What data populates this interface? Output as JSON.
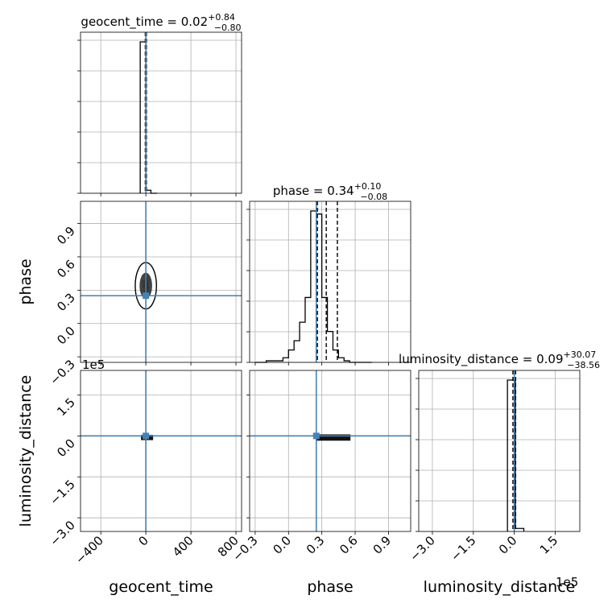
{
  "chart_data": {
    "type": "corner",
    "parameters": [
      "geocent_time",
      "phase",
      "luminosity_distance"
    ],
    "colors": {
      "truth": "#4682b4",
      "hist": "#000000",
      "grid": "#b0b0b0",
      "scatter": "#888888"
    },
    "titles": {
      "geocent_time": {
        "name": "geocent_time",
        "median": "0.02",
        "plus": "+0.84",
        "minus": "−0.80"
      },
      "phase": {
        "name": "phase",
        "median": "0.34",
        "plus": "+0.10",
        "minus": "−0.08"
      },
      "luminosity_distance": {
        "name": "luminosity_distance",
        "median": "0.09",
        "plus": "+30.07",
        "minus": "−38.56"
      }
    },
    "axes": {
      "geocent_time": {
        "label": "geocent_time",
        "lim": [
          -580,
          850
        ],
        "ticks": [
          -400,
          0,
          400,
          800
        ],
        "tick_labels": [
          "−400",
          "0",
          "400",
          "800"
        ]
      },
      "phase": {
        "label": "phase",
        "lim": [
          -0.35,
          1.1
        ],
        "ticks": [
          -0.3,
          0.0,
          0.3,
          0.6,
          0.9
        ],
        "tick_labels": [
          "−0.3",
          "0.0",
          "0.3",
          "0.6",
          "0.9"
        ]
      },
      "luminosity_distance": {
        "label": "luminosity_distance",
        "lim": [
          -3.5,
          2.4
        ],
        "ticks": [
          -3.0,
          -1.5,
          0.0,
          1.5
        ],
        "tick_labels": [
          "−3.0",
          "−1.5",
          "0.0",
          "1.5"
        ],
        "ylim": [
          -3.5,
          2.4
        ],
        "yticks": [
          -3.0,
          -1.5,
          0.0,
          1.5
        ],
        "ytick_labels": [
          "−3.0",
          "−1.5",
          "0.0",
          "1.5"
        ],
        "offset_label": "1e5"
      }
    },
    "truths": {
      "geocent_time": 0,
      "phase": 0.25,
      "luminosity_distance": 0.0
    },
    "quantile_lines": {
      "geocent_time": [
        -5,
        0,
        5
      ],
      "phase": [
        0.26,
        0.34,
        0.44
      ],
      "luminosity_distance": [
        -0.05,
        0.0,
        0.05
      ]
    },
    "histograms": {
      "geocent_time": {
        "edges": [
          -50,
          -10,
          2,
          45,
          100
        ],
        "counts": [
          1.0,
          1.0,
          0.02,
          0.0
        ]
      },
      "phase": {
        "edges": [
          -0.3,
          -0.25,
          -0.2,
          -0.15,
          -0.1,
          -0.05,
          0.0,
          0.05,
          0.1,
          0.15,
          0.2,
          0.25,
          0.3,
          0.35,
          0.4,
          0.45,
          0.5,
          0.55,
          0.6,
          0.65,
          0.7,
          0.75
        ],
        "counts": [
          0,
          0,
          0.01,
          0.01,
          0.01,
          0.03,
          0.08,
          0.14,
          0.26,
          0.42,
          0.98,
          0.96,
          0.42,
          0.2,
          0.08,
          0.03,
          0.01,
          0.0,
          0.0,
          0.0,
          0.0
        ]
      },
      "luminosity_distance": {
        "edges": [
          -0.25,
          0.04,
          0.35
        ],
        "counts": [
          1.0,
          0.02
        ]
      }
    },
    "scatter_centers": {
      "phase_vs_geocent_time": {
        "x": 0,
        "y": 0.34
      },
      "luminosity_distance_vs_geocent_time": {
        "x": 0,
        "y": -0.05
      },
      "luminosity_distance_vs_phase": {
        "x": 0.34,
        "y": -0.05
      }
    },
    "grid": true
  }
}
